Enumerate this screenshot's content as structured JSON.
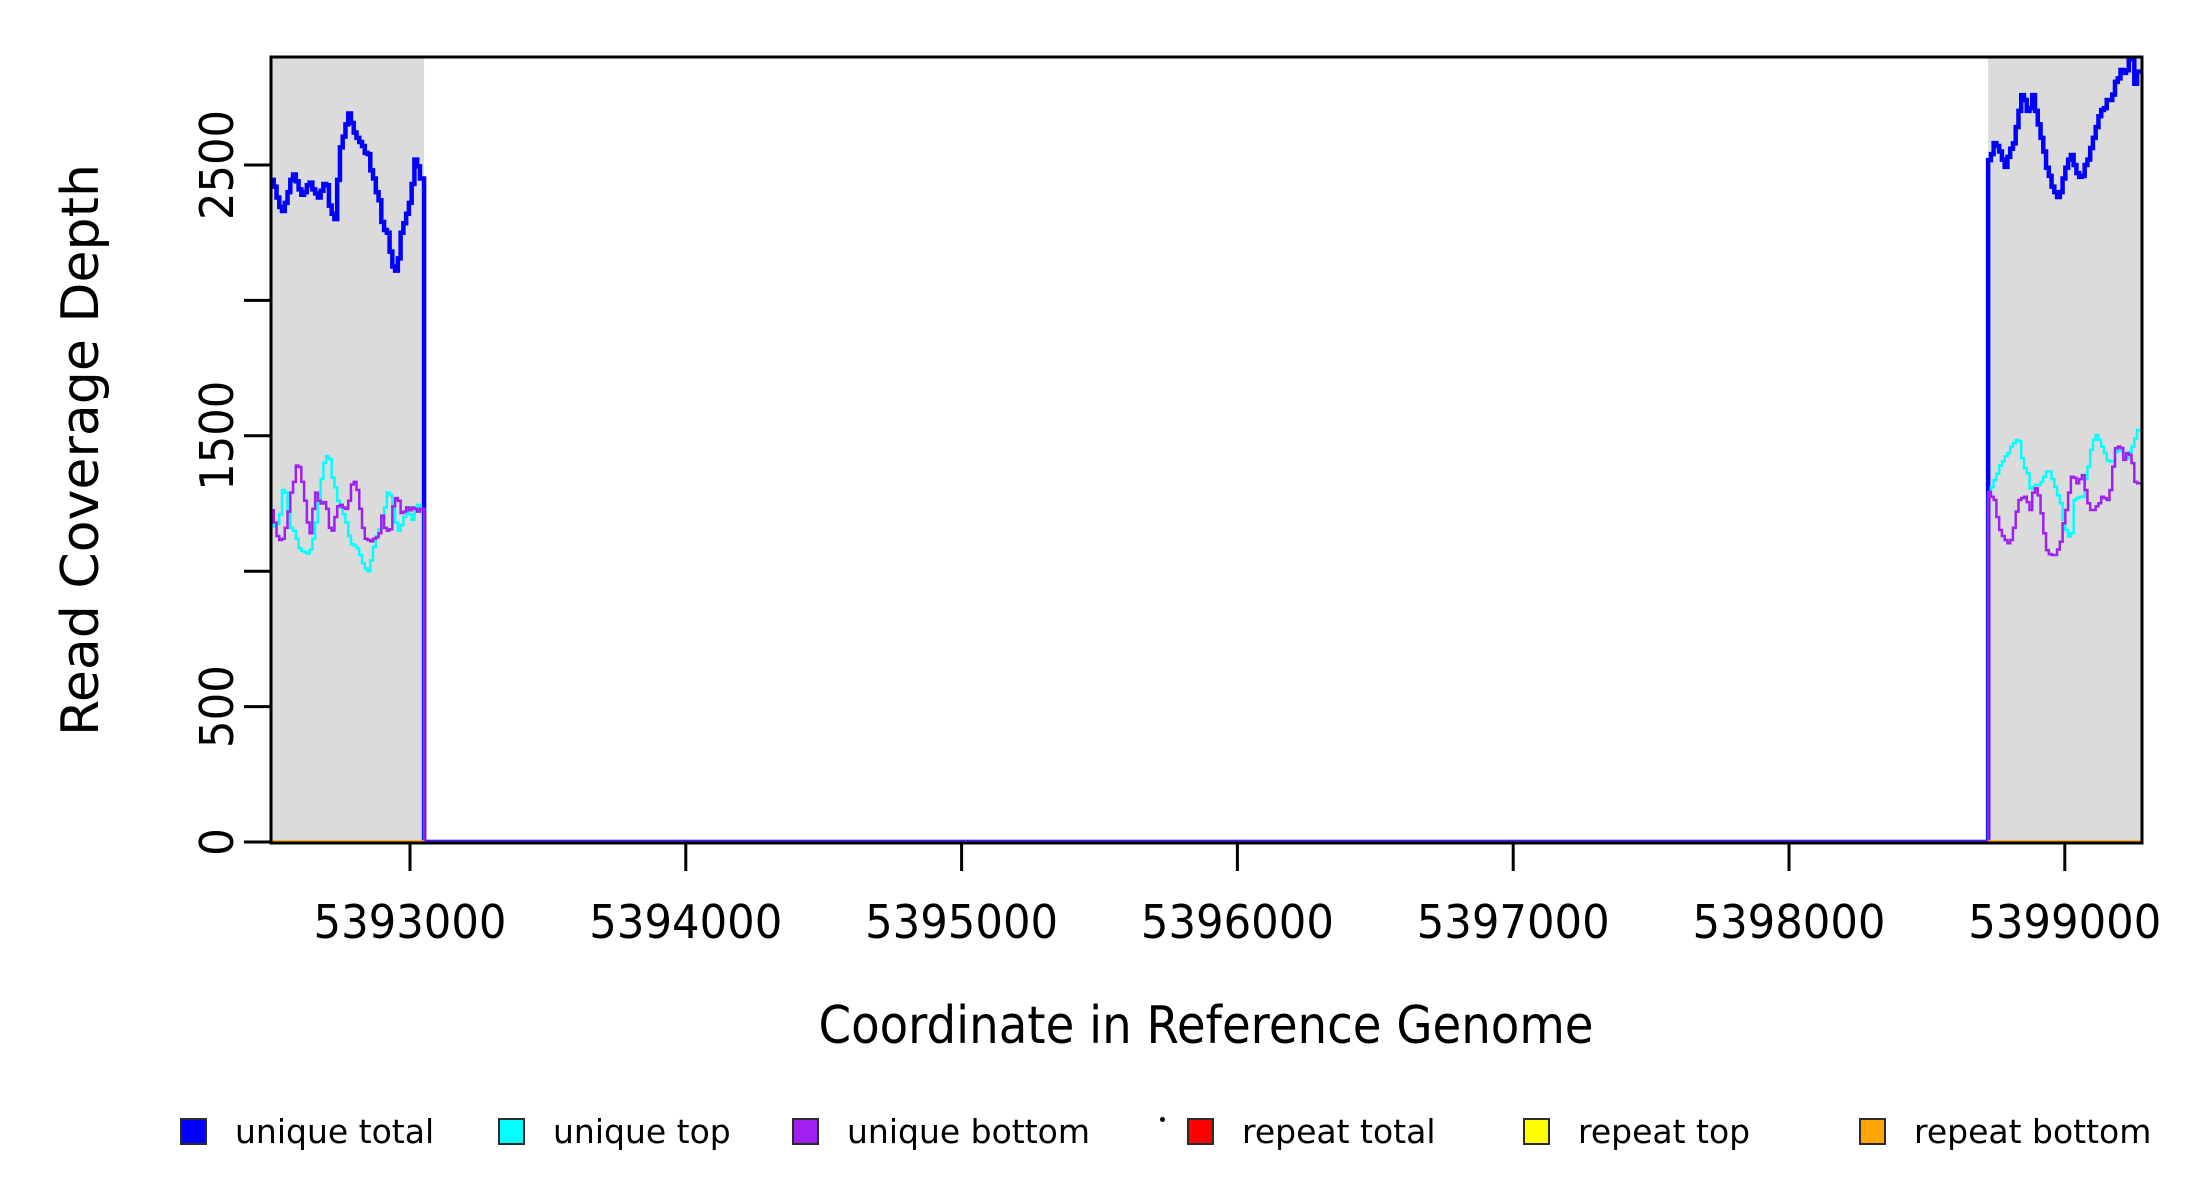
{
  "figure": {
    "background": "#FFFFFF",
    "frame_color": "#000000"
  },
  "chart_data": {
    "type": "line",
    "step": true,
    "title": "",
    "xlabel": "Coordinate in Reference Genome",
    "ylabel": "Read Coverage Depth",
    "grid": "off",
    "legend_position": "bottom",
    "x_axis": {
      "min": 5392496,
      "max": 5399280,
      "ticks": [
        {
          "v": 5393000,
          "label": "5393000"
        },
        {
          "v": 5394000,
          "label": "5394000"
        },
        {
          "v": 5395000,
          "label": "5395000"
        },
        {
          "v": 5396000,
          "label": "5396000"
        },
        {
          "v": 5397000,
          "label": "5397000"
        },
        {
          "v": 5398000,
          "label": "5398000"
        },
        {
          "v": 5399000,
          "label": "5399000"
        }
      ]
    },
    "y_axis": {
      "min": 0,
      "max": 2899,
      "ticks": [
        {
          "v": 0,
          "label": "0"
        },
        {
          "v": 500,
          "label": "500"
        },
        {
          "v": 1000,
          "label": ""
        },
        {
          "v": 1500,
          "label": "1500"
        },
        {
          "v": 2000,
          "label": ""
        },
        {
          "v": 2500,
          "label": "2500"
        }
      ]
    },
    "highlight_regions": [
      {
        "x_start": 5392496,
        "x_end": 5393051,
        "color": "#DBDBDB"
      },
      {
        "x_start": 5398722,
        "x_end": 5399280,
        "color": "#DBDBDB"
      }
    ],
    "series": [
      {
        "name": "unique total",
        "color": "#0000FF",
        "line_width": 4.5,
        "segments": [
          {
            "x_start": 5392496,
            "bin": 10,
            "x_end": 5393051,
            "values": [
              2445,
              2420,
              2380,
              2345,
              2330,
              2360,
              2400,
              2445,
              2465,
              2440,
              2410,
              2390,
              2400,
              2425,
              2435,
              2410,
              2395,
              2380,
              2405,
              2430,
              2425,
              2350,
              2320,
              2300,
              2445,
              2565,
              2605,
              2650,
              2690,
              2655,
              2620,
              2600,
              2585,
              2570,
              2545,
              2540,
              2480,
              2450,
              2400,
              2370,
              2290,
              2260,
              2250,
              2180,
              2125,
              2110,
              2155,
              2250,
              2285,
              2320,
              2360,
              2430,
              2520,
              2495,
              2450
            ]
          },
          {
            "x_start": 5393051,
            "bin": 5671,
            "x_end": 5398722,
            "values": [
              0
            ]
          },
          {
            "x_start": 5398722,
            "bin": 10,
            "x_end": 5399280,
            "values": [
              2518,
              2540,
              2581,
              2570,
              2550,
              2520,
              2493,
              2530,
              2560,
              2580,
              2640,
              2700,
              2758,
              2740,
              2700,
              2710,
              2758,
              2700,
              2650,
              2600,
              2550,
              2490,
              2460,
              2420,
              2400,
              2382,
              2400,
              2450,
              2490,
              2520,
              2537,
              2500,
              2470,
              2456,
              2460,
              2500,
              2520,
              2563,
              2600,
              2640,
              2680,
              2703,
              2710,
              2740,
              2740,
              2760,
              2807,
              2820,
              2851,
              2840,
              2850,
              2895,
              2890,
              2800,
              2845
            ]
          }
        ]
      },
      {
        "name": "unique top",
        "color": "#00FFFF",
        "line_width": 2.5,
        "segments": [
          {
            "x_start": 5392496,
            "bin": 10,
            "x_end": 5393051,
            "values": [
              1190,
              1165,
              1175,
              1210,
              1300,
              1290,
              1220,
              1160,
              1150,
              1120,
              1085,
              1075,
              1070,
              1065,
              1080,
              1120,
              1180,
              1260,
              1340,
              1400,
              1425,
              1415,
              1345,
              1310,
              1260,
              1235,
              1210,
              1180,
              1130,
              1100,
              1095,
              1085,
              1060,
              1030,
              1010,
              1000,
              1040,
              1090,
              1130,
              1155,
              1200,
              1235,
              1290,
              1280,
              1230,
              1180,
              1150,
              1170,
              1200,
              1235,
              1210,
              1190,
              1220,
              1245,
              1230
            ]
          },
          {
            "x_start": 5393051,
            "bin": 5671,
            "x_end": 5398722,
            "values": [
              0
            ]
          },
          {
            "x_start": 5398722,
            "bin": 10,
            "x_end": 5399280,
            "values": [
              1275,
              1310,
              1337,
              1360,
              1390,
              1405,
              1425,
              1436,
              1460,
              1473,
              1485,
              1480,
              1417,
              1380,
              1362,
              1306,
              1310,
              1319,
              1319,
              1330,
              1349,
              1368,
              1368,
              1340,
              1312,
              1280,
              1251,
              1190,
              1152,
              1128,
              1140,
              1263,
              1270,
              1275,
              1275,
              1340,
              1386,
              1448,
              1485,
              1503,
              1485,
              1460,
              1436,
              1410,
              1405,
              1405,
              1440,
              1448,
              1445,
              1417,
              1417,
              1440,
              1460,
              1490,
              1521
            ]
          }
        ]
      },
      {
        "name": "unique bottom",
        "color": "#A020F0",
        "line_width": 2.5,
        "segments": [
          {
            "x_start": 5392496,
            "bin": 10,
            "x_end": 5393051,
            "values": [
              1225,
              1180,
              1130,
              1115,
              1120,
              1160,
              1220,
              1290,
              1330,
              1390,
              1385,
              1330,
              1260,
              1180,
              1140,
              1230,
              1290,
              1260,
              1250,
              1255,
              1230,
              1160,
              1150,
              1200,
              1240,
              1245,
              1235,
              1230,
              1260,
              1320,
              1330,
              1300,
              1230,
              1160,
              1120,
              1115,
              1110,
              1120,
              1125,
              1140,
              1205,
              1160,
              1150,
              1155,
              1240,
              1270,
              1260,
              1215,
              1220,
              1235,
              1225,
              1235,
              1230,
              1220,
              1230
            ]
          },
          {
            "x_start": 5393051,
            "bin": 5671,
            "x_end": 5398722,
            "values": [
              0
            ]
          },
          {
            "x_start": 5398722,
            "bin": 10,
            "x_end": 5399280,
            "values": [
              1293,
              1275,
              1263,
              1200,
              1152,
              1130,
              1115,
              1103,
              1115,
              1160,
              1220,
              1263,
              1270,
              1275,
              1255,
              1226,
              1290,
              1306,
              1280,
              1214,
              1140,
              1078,
              1063,
              1060,
              1060,
              1080,
              1109,
              1177,
              1226,
              1290,
              1349,
              1345,
              1325,
              1340,
              1355,
              1300,
              1251,
              1226,
              1226,
              1240,
              1251,
              1275,
              1270,
              1263,
              1300,
              1386,
              1454,
              1460,
              1455,
              1411,
              1436,
              1430,
              1399,
              1330,
              1325
            ]
          }
        ]
      },
      {
        "name": "repeat total",
        "color": "#FF0000",
        "line_width": 3,
        "segments": [
          {
            "x_start": 5392496,
            "bin": 555,
            "x_end": 5393051,
            "values": [
              0
            ]
          },
          {
            "x_start": 5398722,
            "bin": 558,
            "x_end": 5399280,
            "values": [
              0
            ]
          }
        ]
      },
      {
        "name": "repeat top",
        "color": "#FFFF00",
        "line_width": 3,
        "segments": [
          {
            "x_start": 5392496,
            "bin": 555,
            "x_end": 5393051,
            "values": [
              0
            ]
          },
          {
            "x_start": 5398722,
            "bin": 558,
            "x_end": 5399280,
            "values": [
              0
            ]
          }
        ]
      },
      {
        "name": "repeat bottom",
        "color": "#FFA500",
        "line_width": 3.5,
        "segments": [
          {
            "x_start": 5392496,
            "bin": 555,
            "x_end": 5393051,
            "values": [
              0
            ]
          },
          {
            "x_start": 5398722,
            "bin": 558,
            "x_end": 5399280,
            "values": [
              0
            ]
          }
        ]
      }
    ]
  },
  "legend": {
    "items": [
      {
        "label": "unique total",
        "color": "#0000FF"
      },
      {
        "label": "unique top",
        "color": "#00FFFF"
      },
      {
        "label": "unique bottom",
        "color": "#A020F0"
      },
      {
        "label": "repeat total",
        "color": "#FF0000"
      },
      {
        "label": "repeat top",
        "color": "#FFFF00"
      },
      {
        "label": "repeat bottom",
        "color": "#FFA500"
      }
    ]
  }
}
